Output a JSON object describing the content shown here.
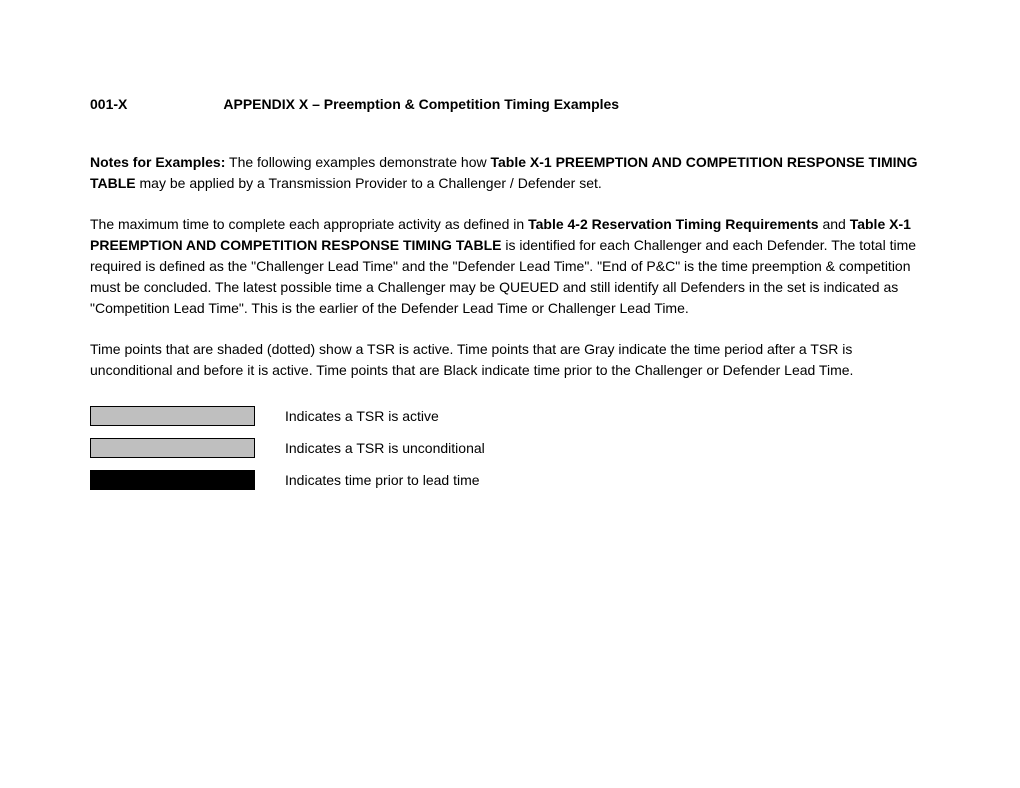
{
  "header": {
    "code": "001-X",
    "title": "APPENDIX X – Preemption & Competition Timing Examples"
  },
  "paragraphs": {
    "p1_bold_lead": "Notes for Examples:",
    "p1_text1": " The following examples demonstrate how ",
    "p1_bold2": "Table X-1 PREEMPTION AND COMPETITION RESPONSE TIMING TABLE",
    "p1_text2": " may be applied by a Transmission Provider to a Challenger / Defender set.",
    "p2_text1": "The maximum time to complete each appropriate activity as defined in ",
    "p2_bold1": "Table 4-2 Reservation Timing Requirements",
    "p2_text2": " and ",
    "p2_bold2": "Table X-1 PREEMPTION AND COMPETITION RESPONSE TIMING TABLE",
    "p2_text3": " is identified for each Challenger and each Defender. The total time required is defined as the \"Challenger Lead Time\" and the \"Defender Lead Time\". \"End of P&C\" is the time preemption & competition must be concluded. The latest possible time a Challenger may be QUEUED and still identify all Defenders in the set is indicated as \"Competition Lead Time\". This is the earlier of the Defender Lead Time or Challenger Lead Time.",
    "p3_text": "Time points that are shaded (dotted) show a TSR is active. Time points that are Gray indicate the time period after a TSR is unconditional and before it is active. Time points that are Black indicate time prior to the Challenger or Defender Lead Time."
  },
  "legend": {
    "items": [
      {
        "label": "Indicates a TSR is active",
        "swatch_bg": "#bfbfbf",
        "swatch_border": "#000000"
      },
      {
        "label": "Indicates a TSR is unconditional",
        "swatch_bg": "#bfbfbf",
        "swatch_border": "#000000"
      },
      {
        "label": "Indicates time prior to lead time",
        "swatch_bg": "#000000",
        "swatch_border": "#000000"
      }
    ]
  },
  "styles": {
    "page_bg": "#ffffff",
    "text_color": "#000000",
    "font_family": "Arial, Helvetica, sans-serif",
    "body_fontsize": 14,
    "header_fontsize": 14
  }
}
